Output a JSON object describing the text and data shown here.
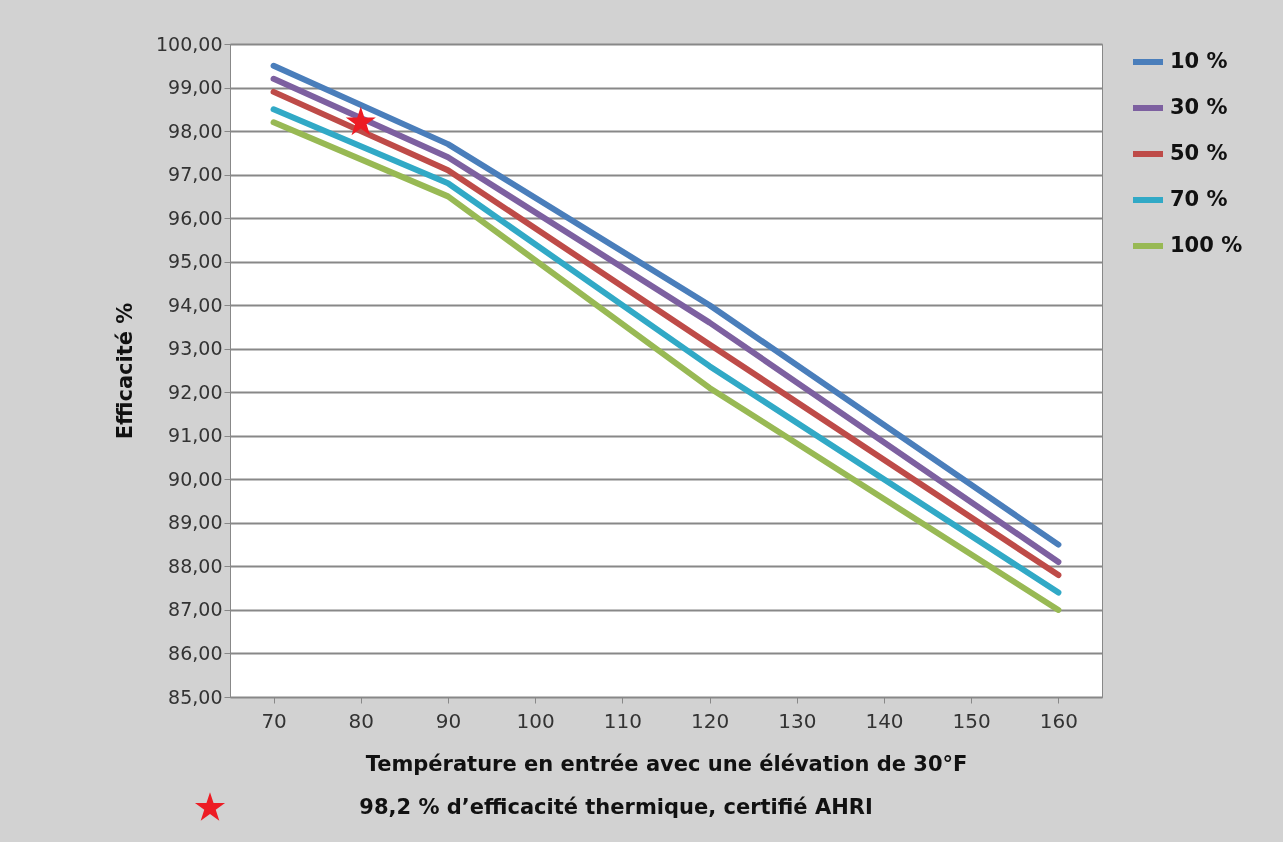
{
  "chart_data": {
    "type": "line",
    "xlabel": "Température en entrée avec une élévation de 30°F",
    "ylabel": "Efficacité  %",
    "annotations": [
      "98,2 % d’efficacité thermique, certifié AHRI"
    ],
    "xlim": [
      65,
      165
    ],
    "xticks": [
      70,
      80,
      90,
      100,
      110,
      120,
      130,
      140,
      150,
      160
    ],
    "ylim": [
      85,
      100
    ],
    "yticks": [
      {
        "value": 85,
        "label": "85,00"
      },
      {
        "value": 86,
        "label": "86,00"
      },
      {
        "value": 87,
        "label": "87,00"
      },
      {
        "value": 88,
        "label": "88,00"
      },
      {
        "value": 89,
        "label": "89,00"
      },
      {
        "value": 90,
        "label": "90,00"
      },
      {
        "value": 91,
        "label": "91,00"
      },
      {
        "value": 92,
        "label": "92,00"
      },
      {
        "value": 93,
        "label": "93,00"
      },
      {
        "value": 94,
        "label": "94,00"
      },
      {
        "value": 95,
        "label": "95,00"
      },
      {
        "value": 96,
        "label": "96,00"
      },
      {
        "value": 97,
        "label": "97,00"
      },
      {
        "value": 98,
        "label": "98,00"
      },
      {
        "value": 99,
        "label": "99,00"
      },
      {
        "value": 100,
        "label": "100,00"
      }
    ],
    "grid": "y",
    "legend": "right",
    "line_style": "solid",
    "series": [
      {
        "name": "10 %",
        "color": "#4a7ebb",
        "x": [
          70,
          90,
          120,
          160
        ],
        "values": [
          99.5,
          97.7,
          94.0,
          88.5
        ]
      },
      {
        "name": "30 %",
        "color": "#7d60a0",
        "x": [
          70,
          90,
          120,
          160
        ],
        "values": [
          99.2,
          97.4,
          93.6,
          88.1
        ]
      },
      {
        "name": "50 %",
        "color": "#be4b48",
        "x": [
          70,
          90,
          120,
          160
        ],
        "values": [
          98.9,
          97.1,
          93.1,
          87.8
        ]
      },
      {
        "name": "70 %",
        "color": "#31a9c6",
        "x": [
          70,
          90,
          120,
          160
        ],
        "values": [
          98.5,
          96.8,
          92.6,
          87.4
        ]
      },
      {
        "name": "100 %",
        "color": "#98b954",
        "x": [
          70,
          90,
          120,
          160
        ],
        "values": [
          98.2,
          96.5,
          92.1,
          87.0
        ]
      },
      {
        "type": "scatter",
        "marker": "star",
        "color": "#ed1c24",
        "x": [
          80
        ],
        "values": [
          98.2
        ]
      }
    ]
  }
}
